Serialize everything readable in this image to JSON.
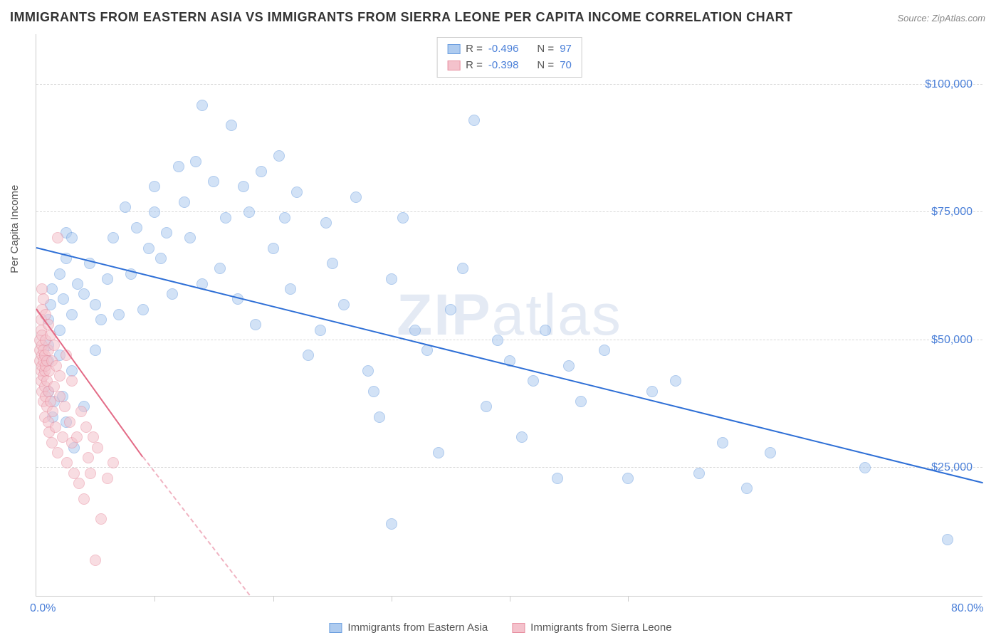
{
  "title": "IMMIGRANTS FROM EASTERN ASIA VS IMMIGRANTS FROM SIERRA LEONE PER CAPITA INCOME CORRELATION CHART",
  "source": "Source: ZipAtlas.com",
  "watermark_zip": "ZIP",
  "watermark_atlas": "atlas",
  "yaxis_title": "Per Capita Income",
  "chart": {
    "type": "scatter",
    "xlim": [
      0,
      80
    ],
    "ylim": [
      0,
      110000
    ],
    "y_ticks": [
      25000,
      50000,
      75000,
      100000
    ],
    "y_tick_labels": [
      "$25,000",
      "$50,000",
      "$75,000",
      "$100,000"
    ],
    "x_minor_ticks_pct": [
      12.5,
      25,
      37.5,
      50,
      62.5
    ],
    "x_start_label": "0.0%",
    "x_end_label": "80.0%",
    "background_color": "#ffffff",
    "grid_color": "#d8d8d8",
    "axis_color": "#cccccc",
    "label_color": "#4a7fd8",
    "title_color": "#333333",
    "point_radius": 8,
    "point_opacity": 0.55
  },
  "series": [
    {
      "name": "Immigrants from Eastern Asia",
      "fill": "#aecbef",
      "stroke": "#6ea0e0",
      "trend_color": "#2e6fd6",
      "R": "-0.496",
      "N": "97",
      "trend": {
        "x1": 0,
        "y1": 68000,
        "x2": 80,
        "y2": 22000,
        "dashed": false
      },
      "points": [
        [
          1,
          40000
        ],
        [
          1,
          46000
        ],
        [
          1,
          49000
        ],
        [
          1,
          54000
        ],
        [
          1.2,
          57000
        ],
        [
          1.3,
          60000
        ],
        [
          1.4,
          35000
        ],
        [
          1.5,
          38000
        ],
        [
          2,
          47000
        ],
        [
          2,
          52000
        ],
        [
          2,
          63000
        ],
        [
          2.2,
          39000
        ],
        [
          2.3,
          58000
        ],
        [
          2.5,
          34000
        ],
        [
          2.5,
          66000
        ],
        [
          2.5,
          71000
        ],
        [
          3,
          44000
        ],
        [
          3,
          55000
        ],
        [
          3,
          70000
        ],
        [
          3.2,
          29000
        ],
        [
          3.5,
          61000
        ],
        [
          4,
          37000
        ],
        [
          4,
          59000
        ],
        [
          4.5,
          65000
        ],
        [
          5,
          48000
        ],
        [
          5,
          57000
        ],
        [
          5.5,
          54000
        ],
        [
          6,
          62000
        ],
        [
          6.5,
          70000
        ],
        [
          7,
          55000
        ],
        [
          7.5,
          76000
        ],
        [
          8,
          63000
        ],
        [
          8.5,
          72000
        ],
        [
          9,
          56000
        ],
        [
          9.5,
          68000
        ],
        [
          10,
          75000
        ],
        [
          10,
          80000
        ],
        [
          10.5,
          66000
        ],
        [
          11,
          71000
        ],
        [
          11.5,
          59000
        ],
        [
          12,
          84000
        ],
        [
          12.5,
          77000
        ],
        [
          13,
          70000
        ],
        [
          13.5,
          85000
        ],
        [
          14,
          61000
        ],
        [
          14,
          96000
        ],
        [
          15,
          81000
        ],
        [
          15.5,
          64000
        ],
        [
          16,
          74000
        ],
        [
          16.5,
          92000
        ],
        [
          17,
          58000
        ],
        [
          17.5,
          80000
        ],
        [
          18,
          75000
        ],
        [
          18.5,
          53000
        ],
        [
          19,
          83000
        ],
        [
          20,
          68000
        ],
        [
          20.5,
          86000
        ],
        [
          21,
          74000
        ],
        [
          21.5,
          60000
        ],
        [
          22,
          79000
        ],
        [
          23,
          47000
        ],
        [
          24,
          52000
        ],
        [
          24.5,
          73000
        ],
        [
          25,
          65000
        ],
        [
          26,
          57000
        ],
        [
          27,
          78000
        ],
        [
          28,
          44000
        ],
        [
          28.5,
          40000
        ],
        [
          29,
          35000
        ],
        [
          30,
          62000
        ],
        [
          30,
          14000
        ],
        [
          31,
          74000
        ],
        [
          32,
          52000
        ],
        [
          33,
          48000
        ],
        [
          34,
          28000
        ],
        [
          35,
          56000
        ],
        [
          36,
          64000
        ],
        [
          37,
          93000
        ],
        [
          38,
          37000
        ],
        [
          39,
          50000
        ],
        [
          40,
          46000
        ],
        [
          41,
          31000
        ],
        [
          42,
          42000
        ],
        [
          43,
          52000
        ],
        [
          44,
          23000
        ],
        [
          45,
          45000
        ],
        [
          46,
          38000
        ],
        [
          48,
          48000
        ],
        [
          50,
          23000
        ],
        [
          52,
          40000
        ],
        [
          54,
          42000
        ],
        [
          56,
          24000
        ],
        [
          58,
          30000
        ],
        [
          60,
          21000
        ],
        [
          62,
          28000
        ],
        [
          70,
          25000
        ],
        [
          77,
          11000
        ]
      ]
    },
    {
      "name": "Immigrants from Sierra Leone",
      "fill": "#f4c2cc",
      "stroke": "#e890a1",
      "trend_color": "#e36a86",
      "R": "-0.398",
      "N": "70",
      "trend": {
        "x1": 0,
        "y1": 56000,
        "x2": 9,
        "y2": 27000,
        "dashed": false
      },
      "trend_ext": {
        "x1": 9,
        "y1": 27000,
        "x2": 18,
        "y2": 0,
        "dashed": true
      },
      "points": [
        [
          0.3,
          46000
        ],
        [
          0.3,
          48000
        ],
        [
          0.3,
          50000
        ],
        [
          0.4,
          42000
        ],
        [
          0.4,
          44000
        ],
        [
          0.4,
          52000
        ],
        [
          0.4,
          54000
        ],
        [
          0.5,
          40000
        ],
        [
          0.5,
          45000
        ],
        [
          0.5,
          47000
        ],
        [
          0.5,
          49000
        ],
        [
          0.5,
          51000
        ],
        [
          0.5,
          56000
        ],
        [
          0.5,
          60000
        ],
        [
          0.6,
          38000
        ],
        [
          0.6,
          43000
        ],
        [
          0.6,
          46000
        ],
        [
          0.6,
          48000
        ],
        [
          0.6,
          58000
        ],
        [
          0.7,
          35000
        ],
        [
          0.7,
          41000
        ],
        [
          0.7,
          44000
        ],
        [
          0.7,
          47000
        ],
        [
          0.8,
          39000
        ],
        [
          0.8,
          45000
        ],
        [
          0.8,
          50000
        ],
        [
          0.8,
          55000
        ],
        [
          0.9,
          37000
        ],
        [
          0.9,
          42000
        ],
        [
          0.9,
          46000
        ],
        [
          1.0,
          34000
        ],
        [
          1.0,
          40000
        ],
        [
          1.0,
          48000
        ],
        [
          1.0,
          53000
        ],
        [
          1.1,
          32000
        ],
        [
          1.1,
          44000
        ],
        [
          1.2,
          38000
        ],
        [
          1.2,
          51000
        ],
        [
          1.3,
          30000
        ],
        [
          1.3,
          46000
        ],
        [
          1.4,
          36000
        ],
        [
          1.5,
          41000
        ],
        [
          1.5,
          49000
        ],
        [
          1.6,
          33000
        ],
        [
          1.7,
          45000
        ],
        [
          1.8,
          28000
        ],
        [
          1.8,
          70000
        ],
        [
          2.0,
          39000
        ],
        [
          2.0,
          43000
        ],
        [
          2.2,
          31000
        ],
        [
          2.4,
          37000
        ],
        [
          2.5,
          47000
        ],
        [
          2.6,
          26000
        ],
        [
          2.8,
          34000
        ],
        [
          3.0,
          30000
        ],
        [
          3.0,
          42000
        ],
        [
          3.2,
          24000
        ],
        [
          3.4,
          31000
        ],
        [
          3.6,
          22000
        ],
        [
          3.8,
          36000
        ],
        [
          4.0,
          19000
        ],
        [
          4.2,
          33000
        ],
        [
          4.4,
          27000
        ],
        [
          4.6,
          24000
        ],
        [
          4.8,
          31000
        ],
        [
          5.0,
          7000
        ],
        [
          5.2,
          29000
        ],
        [
          5.5,
          15000
        ],
        [
          6.0,
          23000
        ],
        [
          6.5,
          26000
        ]
      ]
    }
  ],
  "legend_bottom": {
    "items": [
      {
        "label": "Immigrants from Eastern Asia",
        "fill": "#aecbef",
        "stroke": "#6ea0e0"
      },
      {
        "label": "Immigrants from Sierra Leone",
        "fill": "#f4c2cc",
        "stroke": "#e890a1"
      }
    ]
  },
  "legend_top": {
    "R_label": "R =",
    "N_label": "N ="
  }
}
